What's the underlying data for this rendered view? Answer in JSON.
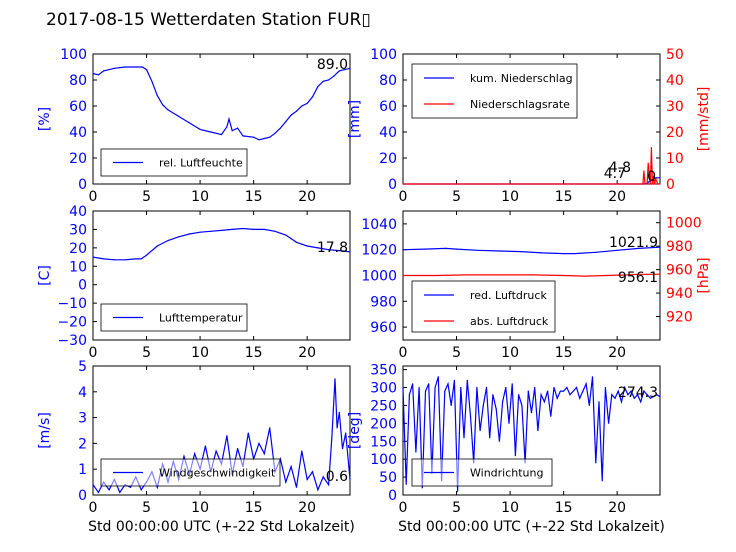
{
  "figure_title": "2017-08-15 Wetterdaten Station FUR▯",
  "colors": {
    "primary": "#0000ff",
    "secondary": "#ff0000",
    "axis": "#000000"
  },
  "chart_data": [
    {
      "id": "humidity",
      "type": "line",
      "xlim": [
        0,
        24
      ],
      "ylim": [
        0,
        100
      ],
      "xticks": [
        "0",
        "5",
        "10",
        "15",
        "20"
      ],
      "yticks": [
        "0",
        "20",
        "40",
        "60",
        "80",
        "100"
      ],
      "ylabel": "[%]",
      "current_value": "89.0",
      "legend": {
        "placement": "lower-left",
        "entries": [
          "rel. Luftfeuchte"
        ]
      },
      "series": [
        {
          "name": "rel. Luftfeuchte",
          "color": "#0000ff",
          "axis": "left",
          "x": [
            0,
            0.5,
            1,
            2,
            3,
            4,
            4.6,
            5,
            5.5,
            6,
            6.5,
            7,
            8,
            9,
            10,
            11,
            12,
            12.5,
            12.7,
            13,
            13.5,
            14,
            15,
            15.5,
            16,
            16.5,
            17,
            17.5,
            18,
            18.5,
            19,
            19.5,
            20,
            20.5,
            21,
            21.5,
            22,
            22.5,
            23,
            23.5,
            24
          ],
          "y": [
            85,
            84,
            87,
            89,
            90,
            90,
            90,
            88,
            79,
            68,
            61,
            57,
            52,
            47,
            42,
            40,
            38,
            44,
            50,
            41,
            43,
            37,
            36,
            34,
            35,
            36,
            39,
            43,
            48,
            53,
            56,
            60,
            62,
            67,
            75,
            79,
            80,
            83,
            87,
            88,
            89
          ]
        }
      ]
    },
    {
      "id": "precipitation",
      "type": "line",
      "xlim": [
        0,
        24
      ],
      "ylim": [
        0,
        100
      ],
      "ylim_right": [
        0,
        50
      ],
      "xticks": [
        "0",
        "5",
        "10",
        "15",
        "20"
      ],
      "yticks": [
        "0",
        "20",
        "40",
        "60",
        "80",
        "100"
      ],
      "yticks_right": [
        "0",
        "10",
        "20",
        "30",
        "40",
        "50"
      ],
      "ylabel": "[mm]",
      "ylabel_right": "[mm/std]",
      "annotations": [
        "4.8",
        "4.7",
        "0"
      ],
      "legend": {
        "placement": "top-left",
        "entries": [
          "kum. Niederschlag",
          "Niederschlagsrate"
        ]
      },
      "series": [
        {
          "name": "kum. Niederschlag",
          "color": "#0000ff",
          "axis": "left",
          "x": [
            0,
            22.5,
            22.8,
            23,
            23.3,
            23.6,
            24
          ],
          "y": [
            0,
            0,
            0.5,
            2,
            3.5,
            4.7,
            4.8
          ]
        },
        {
          "name": "Niederschlagsrate",
          "color": "#ff0000",
          "axis": "right",
          "x": [
            0,
            22.4,
            22.5,
            22.6,
            22.8,
            22.9,
            23.1,
            23.2,
            23.3,
            23.4,
            23.5,
            23.6,
            23.8,
            24
          ],
          "y": [
            0,
            0,
            5,
            0,
            0,
            8,
            0,
            14,
            0,
            3,
            0,
            2,
            0,
            0
          ]
        }
      ]
    },
    {
      "id": "temperature",
      "type": "line",
      "xlim": [
        0,
        24
      ],
      "ylim": [
        -30,
        40
      ],
      "xticks": [
        "0",
        "5",
        "10",
        "15",
        "20"
      ],
      "yticks": [
        "−30",
        "−20",
        "−10",
        "0",
        "10",
        "20",
        "30",
        "40"
      ],
      "ylabel": "[C]",
      "current_value": "17.8",
      "legend": {
        "placement": "lower-left",
        "entries": [
          "Lufttemperatur"
        ]
      },
      "series": [
        {
          "name": "Lufttemperatur",
          "color": "#0000ff",
          "axis": "left",
          "x": [
            0,
            1,
            2,
            3,
            4,
            4.5,
            5,
            6,
            7,
            8,
            9,
            10,
            11,
            12,
            13,
            14,
            15,
            16,
            17,
            18,
            18.5,
            19,
            19.5,
            20,
            21,
            22,
            23,
            24
          ],
          "y": [
            15,
            14,
            13.5,
            13.5,
            14,
            14,
            16,
            21,
            24,
            26,
            27.5,
            28.5,
            29,
            29.5,
            30,
            30.5,
            30,
            30,
            29,
            27,
            25,
            23,
            22,
            21,
            20,
            19,
            18.5,
            17.8
          ]
        }
      ]
    },
    {
      "id": "pressure",
      "type": "line",
      "xlim": [
        0,
        24
      ],
      "ylim": [
        950,
        1050
      ],
      "ylim_right": [
        900,
        1010
      ],
      "xticks": [
        "0",
        "5",
        "10",
        "15",
        "20"
      ],
      "yticks": [
        "960",
        "980",
        "1000",
        "1020",
        "1040"
      ],
      "yticks_right": [
        "920",
        "940",
        "960",
        "980",
        "1000"
      ],
      "ylabel_right": "[hPa]",
      "annotations": [
        "1021.9",
        "956.1"
      ],
      "legend": {
        "placement": "lower-left",
        "entries": [
          "red. Luftdruck",
          "abs. Luftdruck"
        ]
      },
      "series": [
        {
          "name": "red. Luftdruck",
          "color": "#0000ff",
          "axis": "left",
          "x": [
            0,
            2,
            4,
            5,
            7,
            9,
            11,
            13,
            15,
            16,
            18,
            20,
            22,
            24
          ],
          "y": [
            1020,
            1020.5,
            1021,
            1020.5,
            1019.5,
            1019,
            1018.5,
            1017.5,
            1017,
            1017,
            1018,
            1019.5,
            1021,
            1021.9
          ]
        },
        {
          "name": "abs. Luftdruck",
          "color": "#ff0000",
          "axis": "right",
          "x": [
            0,
            3,
            6,
            9,
            12,
            15,
            17,
            19,
            21,
            22,
            23,
            24
          ],
          "y": [
            955,
            955,
            955.5,
            955.5,
            955.5,
            955,
            954.5,
            955,
            955.5,
            956,
            956,
            956.1
          ]
        }
      ]
    },
    {
      "id": "windspeed",
      "type": "line",
      "xlim": [
        0,
        24
      ],
      "ylim": [
        0,
        5
      ],
      "xticks": [
        "0",
        "5",
        "10",
        "15",
        "20"
      ],
      "yticks": [
        "0",
        "1",
        "2",
        "3",
        "4",
        "5"
      ],
      "ylabel": "[m/s]",
      "xlabel": "Std 00:00:00 UTC (+-22 Std Lokalzeit)",
      "current_value": "0.6",
      "legend": {
        "placement": "lower-left",
        "entries": [
          "Windgeschwindigkeit"
        ]
      },
      "series": [
        {
          "name": "Windgeschwindigkeit",
          "color": "#0000ff",
          "axis": "left",
          "x": [
            0,
            0.5,
            1,
            1.5,
            2,
            2.5,
            3,
            3.5,
            4,
            4.5,
            5,
            5.5,
            6,
            6.5,
            7,
            7.5,
            8,
            8.5,
            9,
            9.5,
            10,
            10.5,
            11,
            11.5,
            12,
            12.5,
            13,
            13.5,
            14,
            14.5,
            15,
            15.5,
            16,
            16.5,
            17,
            17.5,
            18,
            18.5,
            19,
            19.5,
            20,
            20.5,
            21,
            21.5,
            22,
            22.3,
            22.6,
            22.8,
            23,
            23.3,
            23.6,
            24
          ],
          "y": [
            0.4,
            0.1,
            0.5,
            0.2,
            0.6,
            0.1,
            0.4,
            0.3,
            0.7,
            0.2,
            0.5,
            0.9,
            0.3,
            1.2,
            0.5,
            1.3,
            0.6,
            1.5,
            0.8,
            1.6,
            1.0,
            1.9,
            0.9,
            1.7,
            1.2,
            2.3,
            0.8,
            1.8,
            1.1,
            2.4,
            1.4,
            2.0,
            1.6,
            2.6,
            0.9,
            1.4,
            0.5,
            1.1,
            0.3,
            1.7,
            0.6,
            0.9,
            0.2,
            0.7,
            0.4,
            2.2,
            4.5,
            2.6,
            3.2,
            1.8,
            2.4,
            0.6
          ]
        }
      ]
    },
    {
      "id": "winddirection",
      "type": "line",
      "xlim": [
        0,
        24
      ],
      "ylim": [
        0,
        360
      ],
      "xticks": [
        "0",
        "5",
        "10",
        "15",
        "20"
      ],
      "yticks": [
        "0",
        "50",
        "100",
        "150",
        "200",
        "250",
        "300",
        "350"
      ],
      "ylabel": "[deg]",
      "xlabel": "Std 00:00:00 UTC (+-22 Std Lokalzeit)",
      "current_value": "274.3",
      "legend": {
        "placement": "lower-left",
        "entries": [
          "Windrichtung"
        ]
      },
      "series": [
        {
          "name": "Windrichtung",
          "color": "#0000ff",
          "axis": "left",
          "x": [
            0,
            0.3,
            0.6,
            0.9,
            1.2,
            1.5,
            1.8,
            2.1,
            2.4,
            2.7,
            3,
            3.3,
            3.6,
            3.9,
            4.2,
            4.5,
            4.8,
            5.1,
            5.4,
            5.7,
            6,
            6.3,
            6.6,
            6.9,
            7.2,
            7.5,
            7.8,
            8.1,
            8.4,
            8.7,
            9,
            9.3,
            9.6,
            9.9,
            10.2,
            10.5,
            10.8,
            11.1,
            11.4,
            11.7,
            12,
            12.3,
            12.6,
            12.9,
            13.2,
            13.5,
            13.8,
            14.1,
            14.4,
            14.7,
            15,
            15.3,
            15.6,
            15.9,
            16.2,
            16.5,
            16.8,
            17.1,
            17.4,
            17.7,
            18,
            18.3,
            18.6,
            18.9,
            19.2,
            19.5,
            19.8,
            20.1,
            20.4,
            20.7,
            21,
            21.3,
            21.6,
            21.9,
            22.2,
            22.5,
            22.8,
            23.1,
            23.4,
            23.7,
            24
          ],
          "y": [
            300,
            30,
            280,
            310,
            120,
            300,
            20,
            290,
            310,
            60,
            300,
            330,
            40,
            290,
            310,
            250,
            320,
            10,
            300,
            160,
            320,
            220,
            90,
            300,
            180,
            250,
            300,
            160,
            280,
            240,
            150,
            260,
            300,
            200,
            310,
            110,
            280,
            250,
            90,
            290,
            230,
            300,
            180,
            280,
            260,
            290,
            220,
            300,
            270,
            290,
            290,
            300,
            280,
            290,
            300,
            270,
            290,
            310,
            250,
            330,
            90,
            260,
            40,
            300,
            200,
            280,
            270,
            290,
            260,
            300,
            280,
            290,
            270,
            280,
            260,
            290,
            280,
            270,
            275,
            280,
            274.3
          ]
        }
      ]
    }
  ]
}
